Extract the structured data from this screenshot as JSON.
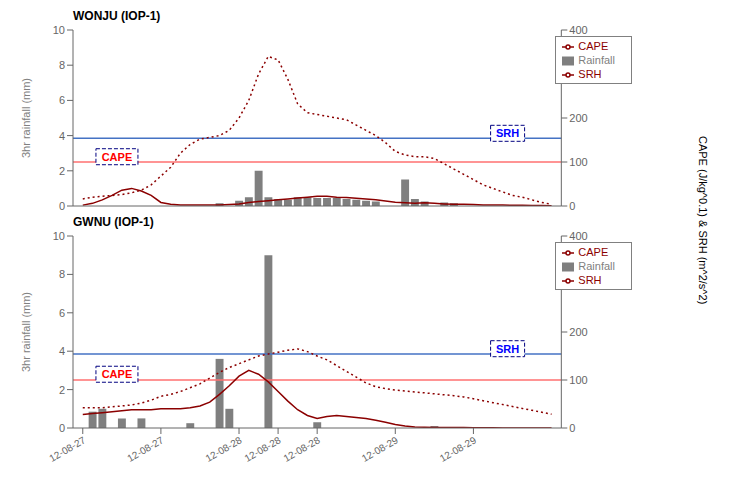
{
  "chart_data": [
    {
      "type": "bar",
      "title": "WONJU (IOP-1)",
      "ylabel": "3hr rainfall (mm)",
      "y2label": "CAPE (J/kg^0.1) & SRH (m^2/s^2)",
      "xlim": [
        -1,
        49
      ],
      "xticks": [
        0,
        8,
        16,
        20,
        24,
        32,
        40
      ],
      "tick_labels": "y",
      "ylim": [
        0,
        10
      ],
      "yticks": [
        0,
        2,
        4,
        6,
        8,
        10
      ],
      "y2lim": [
        0,
        400
      ],
      "y2ticks": [
        0,
        100,
        200,
        300,
        400
      ],
      "legend": "upper right",
      "series": [
        {
          "name": "Rainfall",
          "type": "bar",
          "color": "#7f7f7f",
          "x": [
            14,
            16,
            17,
            18,
            19,
            20,
            21,
            22,
            23,
            24,
            25,
            26,
            27,
            28,
            29,
            30,
            33,
            34,
            35,
            37,
            38
          ],
          "values": [
            0.15,
            0.3,
            0.5,
            2.0,
            0.5,
            0.4,
            0.35,
            0.5,
            0.5,
            0.45,
            0.45,
            0.45,
            0.4,
            0.35,
            0.3,
            0.25,
            1.5,
            0.4,
            0.25,
            0.2,
            0.15
          ]
        },
        {
          "name": "CAPE",
          "type": "line",
          "color": "#8b0000",
          "line_style": "solid",
          "x": [
            0,
            1,
            2,
            3,
            4,
            5,
            6,
            7,
            8,
            9,
            10,
            11,
            12,
            13,
            14,
            15,
            16,
            17,
            18,
            19,
            20,
            21,
            22,
            23,
            24,
            25,
            26,
            27,
            28,
            29,
            30,
            31,
            32,
            33,
            34,
            35,
            36,
            37,
            38,
            39,
            40,
            41,
            42,
            43,
            44,
            45,
            46,
            47,
            48
          ],
          "values": [
            0.05,
            0.15,
            0.35,
            0.6,
            0.9,
            1.0,
            0.85,
            0.6,
            0.2,
            0.1,
            0.05,
            0.05,
            0.05,
            0.05,
            0.05,
            0.08,
            0.12,
            0.2,
            0.25,
            0.3,
            0.35,
            0.4,
            0.45,
            0.5,
            0.55,
            0.55,
            0.5,
            0.48,
            0.44,
            0.4,
            0.35,
            0.28,
            0.22,
            0.18,
            0.15,
            0.18,
            0.15,
            0.12,
            0.1,
            0.1,
            0.08,
            0.06,
            0.05,
            0.05,
            0.04,
            0.04,
            0.03,
            0.03,
            0.02
          ]
        },
        {
          "name": "SRH",
          "type": "line",
          "color": "#8b0000",
          "line_style": "dotted",
          "x": [
            0,
            1,
            2,
            3,
            4,
            5,
            6,
            7,
            8,
            9,
            10,
            11,
            12,
            13,
            14,
            15,
            16,
            17,
            18,
            19,
            20,
            21,
            22,
            23,
            24,
            25,
            26,
            27,
            28,
            29,
            30,
            31,
            32,
            33,
            34,
            35,
            36,
            37,
            38,
            39,
            40,
            41,
            42,
            43,
            44,
            45,
            46,
            47,
            48
          ],
          "values": [
            0.4,
            0.5,
            0.55,
            0.6,
            0.65,
            0.75,
            0.9,
            1.2,
            1.7,
            2.2,
            3.0,
            3.5,
            3.8,
            3.9,
            4.0,
            4.3,
            5.0,
            6.0,
            7.5,
            8.5,
            8.3,
            7.2,
            5.8,
            5.3,
            5.2,
            5.1,
            5.0,
            4.9,
            4.6,
            4.3,
            4.0,
            3.6,
            3.1,
            2.9,
            2.8,
            2.8,
            2.7,
            2.4,
            2.1,
            1.8,
            1.5,
            1.2,
            1.0,
            0.8,
            0.6,
            0.5,
            0.35,
            0.2,
            0.1
          ]
        }
      ],
      "reference_lines": [
        {
          "value": 3.85,
          "color": "#4472c4"
        },
        {
          "value": 2.5,
          "color": "#ff7070"
        }
      ],
      "annotations": [
        {
          "text": "CAPE",
          "x": 3.5,
          "y": 2.8,
          "color": "red"
        },
        {
          "text": "SRH",
          "x": 43.5,
          "y": 4.13,
          "color": "blue"
        }
      ]
    },
    {
      "type": "bar",
      "title": "GWNU (IOP-1)",
      "ylabel": "3hr rainfall (mm)",
      "xlim": [
        -1,
        49
      ],
      "xticks": [
        {
          "value": 0,
          "label": "12-08-27"
        },
        {
          "value": 8,
          "label": "12-08-27"
        },
        {
          "value": 16,
          "label": "12-08-28"
        },
        {
          "value": 20,
          "label": "12-08-28"
        },
        {
          "value": 24,
          "label": "12-08-28"
        },
        {
          "value": 32,
          "label": "12-08-29"
        },
        {
          "value": 40,
          "label": "12-08-29"
        }
      ],
      "ylim": [
        0,
        10
      ],
      "yticks": [
        0,
        2,
        4,
        6,
        8,
        10
      ],
      "y2lim": [
        0,
        400
      ],
      "y2ticks": [
        0,
        100,
        200,
        300,
        400
      ],
      "legend": "upper right",
      "series": [
        {
          "name": "Rainfall",
          "type": "bar",
          "color": "#7f7f7f",
          "x": [
            1,
            2,
            4,
            6,
            11,
            14,
            15,
            19,
            24,
            36
          ],
          "values": [
            0.85,
            1.0,
            0.5,
            0.5,
            0.25,
            3.6,
            1.0,
            9.0,
            0.3,
            0.1
          ]
        },
        {
          "name": "CAPE",
          "type": "line",
          "color": "#8b0000",
          "line_style": "solid",
          "x": [
            0,
            1,
            2,
            3,
            4,
            5,
            6,
            7,
            8,
            9,
            10,
            11,
            12,
            13,
            14,
            15,
            16,
            17,
            18,
            19,
            20,
            21,
            22,
            23,
            24,
            25,
            26,
            27,
            28,
            29,
            30,
            31,
            32,
            33,
            34,
            35,
            36,
            37,
            38,
            39,
            40,
            41,
            42,
            43,
            44,
            45,
            46,
            47,
            48
          ],
          "values": [
            0.7,
            0.75,
            0.8,
            0.85,
            0.9,
            0.95,
            0.95,
            0.95,
            1.0,
            1.0,
            1.0,
            1.05,
            1.15,
            1.35,
            1.75,
            2.2,
            2.7,
            3.0,
            2.8,
            2.4,
            1.9,
            1.4,
            0.95,
            0.65,
            0.5,
            0.6,
            0.65,
            0.6,
            0.55,
            0.5,
            0.4,
            0.3,
            0.18,
            0.1,
            0.05,
            0.04,
            0.03,
            0.03,
            0.02,
            0.02,
            0.01,
            0.01,
            0.01,
            0.0,
            0.0,
            0.0,
            0.0,
            0.0,
            0.0
          ]
        },
        {
          "name": "SRH",
          "type": "line",
          "color": "#8b0000",
          "line_style": "dotted",
          "x": [
            0,
            1,
            2,
            3,
            4,
            5,
            6,
            7,
            8,
            9,
            10,
            11,
            12,
            13,
            14,
            15,
            16,
            17,
            18,
            19,
            20,
            21,
            22,
            23,
            24,
            25,
            26,
            27,
            28,
            29,
            30,
            31,
            32,
            33,
            34,
            35,
            36,
            37,
            38,
            39,
            40,
            41,
            42,
            43,
            44,
            45,
            46,
            47,
            48
          ],
          "values": [
            1.05,
            1.05,
            1.05,
            1.1,
            1.15,
            1.2,
            1.3,
            1.45,
            1.65,
            1.75,
            1.9,
            2.1,
            2.3,
            2.6,
            2.9,
            3.15,
            3.35,
            3.55,
            3.75,
            3.85,
            3.95,
            4.05,
            4.12,
            3.98,
            3.75,
            3.55,
            3.25,
            2.95,
            2.65,
            2.35,
            2.15,
            2.05,
            1.98,
            1.93,
            1.88,
            1.83,
            1.78,
            1.73,
            1.68,
            1.62,
            1.52,
            1.42,
            1.32,
            1.22,
            1.12,
            1.02,
            0.92,
            0.82,
            0.72
          ]
        }
      ],
      "reference_lines": [
        {
          "value": 3.85,
          "color": "#4472c4"
        },
        {
          "value": 2.5,
          "color": "#ff7070"
        }
      ],
      "annotations": [
        {
          "text": "CAPE",
          "x": 3.5,
          "y": 2.8,
          "color": "red"
        },
        {
          "text": "SRH",
          "x": 43.5,
          "y": 4.13,
          "color": "blue"
        }
      ]
    }
  ]
}
